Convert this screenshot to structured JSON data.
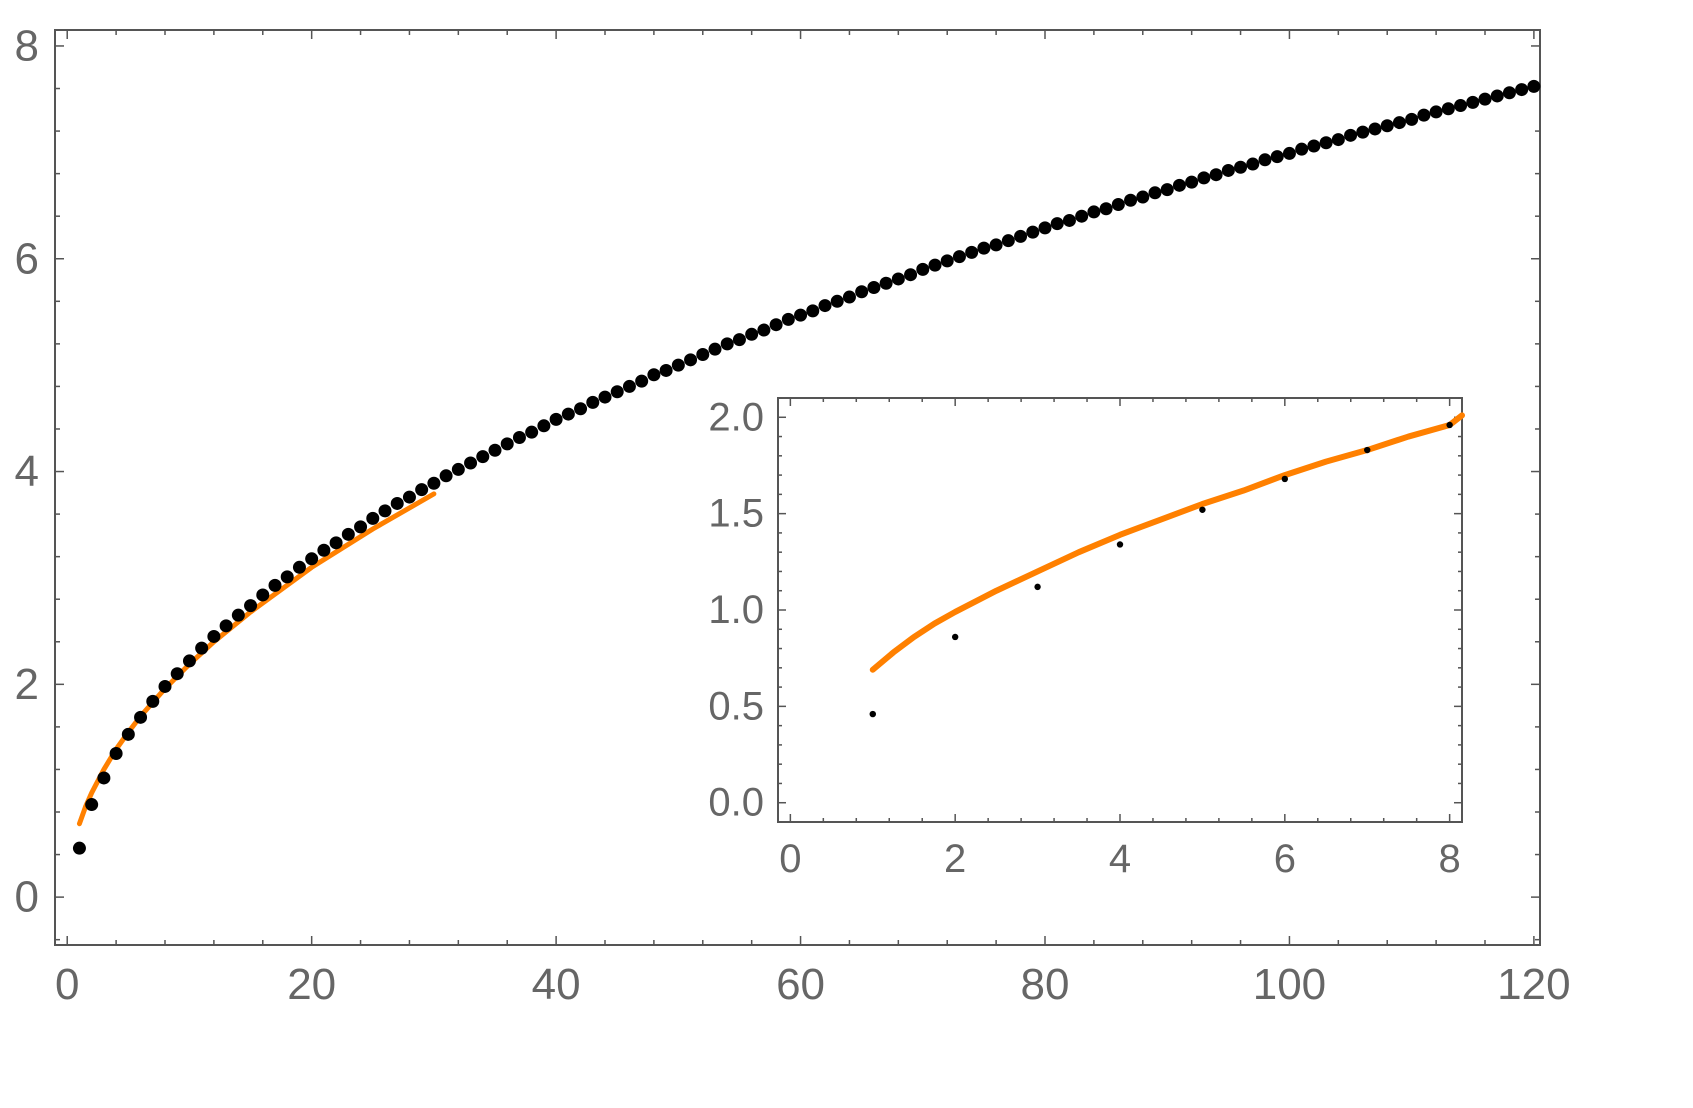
{
  "chart_data": [
    {
      "id": "main",
      "type": "scatter",
      "title": "",
      "xlabel": "",
      "ylabel": "",
      "xlim": [
        -1,
        120.5
      ],
      "ylim": [
        -0.45,
        8.15
      ],
      "xticks": [
        0,
        20,
        40,
        60,
        80,
        100,
        120
      ],
      "xtick_labels": [
        "0",
        "20",
        "40",
        "60",
        "80",
        "100",
        "120"
      ],
      "yticks": [
        0,
        2,
        4,
        6,
        8
      ],
      "ytick_labels": [
        "0",
        "2",
        "4",
        "6",
        "8"
      ],
      "grid": false,
      "frame": true,
      "series": [
        {
          "kind": "points",
          "color": "#000000",
          "x_start": 1,
          "x_step": 1,
          "values": [
            0.46,
            0.87,
            1.12,
            1.35,
            1.53,
            1.69,
            1.84,
            1.98,
            2.1,
            2.22,
            2.34,
            2.45,
            2.55,
            2.65,
            2.74,
            2.84,
            2.93,
            3.01,
            3.1,
            3.18,
            3.26,
            3.33,
            3.41,
            3.48,
            3.56,
            3.63,
            3.7,
            3.76,
            3.83,
            3.89,
            3.96,
            4.02,
            4.08,
            4.14,
            4.2,
            4.26,
            4.32,
            4.37,
            4.43,
            4.49,
            4.54,
            4.59,
            4.65,
            4.7,
            4.75,
            4.8,
            4.85,
            4.91,
            4.95,
            5.0,
            5.05,
            5.1,
            5.15,
            5.2,
            5.24,
            5.29,
            5.33,
            5.38,
            5.43,
            5.47,
            5.51,
            5.56,
            5.6,
            5.64,
            5.69,
            5.73,
            5.77,
            5.81,
            5.85,
            5.9,
            5.94,
            5.98,
            6.02,
            6.06,
            6.1,
            6.13,
            6.17,
            6.21,
            6.25,
            6.29,
            6.33,
            6.36,
            6.4,
            6.44,
            6.47,
            6.51,
            6.55,
            6.58,
            6.62,
            6.65,
            6.69,
            6.72,
            6.76,
            6.79,
            6.83,
            6.86,
            6.89,
            6.93,
            6.96,
            6.99,
            7.03,
            7.06,
            7.09,
            7.12,
            7.16,
            7.19,
            7.22,
            7.25,
            7.28,
            7.31,
            7.35,
            7.38,
            7.41,
            7.44,
            7.47,
            7.5,
            7.53,
            7.56,
            7.59,
            7.62
          ]
        },
        {
          "kind": "curve",
          "color": "#ff8000",
          "x": [
            1,
            1.5,
            2,
            3,
            4,
            5,
            6,
            7,
            8,
            10,
            12,
            15,
            20,
            25,
            30
          ],
          "values": [
            0.69,
            0.85,
            0.98,
            1.2,
            1.39,
            1.55,
            1.7,
            1.83,
            1.96,
            2.19,
            2.4,
            2.68,
            3.1,
            3.46,
            3.79
          ]
        }
      ]
    },
    {
      "id": "inset",
      "type": "scatter",
      "title": "",
      "xlabel": "",
      "ylabel": "",
      "xlim": [
        -0.15,
        8.15
      ],
      "ylim": [
        -0.1,
        2.1
      ],
      "xticks": [
        0,
        2,
        4,
        6,
        8
      ],
      "xtick_labels": [
        "0",
        "2",
        "4",
        "6",
        "8"
      ],
      "yticks": [
        0,
        0.5,
        1,
        1.5,
        2
      ],
      "ytick_labels": [
        "0.0",
        "0.5",
        "1.0",
        "1.5",
        "2.0"
      ],
      "grid": false,
      "frame": true,
      "series": [
        {
          "kind": "points",
          "color": "#000000",
          "x": [
            1,
            2,
            3,
            4,
            5,
            6,
            7,
            8
          ],
          "values": [
            0.46,
            0.86,
            1.12,
            1.34,
            1.52,
            1.68,
            1.83,
            1.96
          ]
        },
        {
          "kind": "curve",
          "color": "#ff8000",
          "x": [
            1,
            1.25,
            1.5,
            1.75,
            2,
            2.5,
            3,
            3.5,
            4,
            4.5,
            5,
            5.5,
            6,
            6.5,
            7,
            7.5,
            8,
            8.15
          ],
          "values": [
            0.69,
            0.78,
            0.86,
            0.93,
            0.99,
            1.1,
            1.2,
            1.3,
            1.39,
            1.47,
            1.55,
            1.62,
            1.7,
            1.77,
            1.83,
            1.9,
            1.96,
            2.01
          ]
        }
      ]
    }
  ]
}
